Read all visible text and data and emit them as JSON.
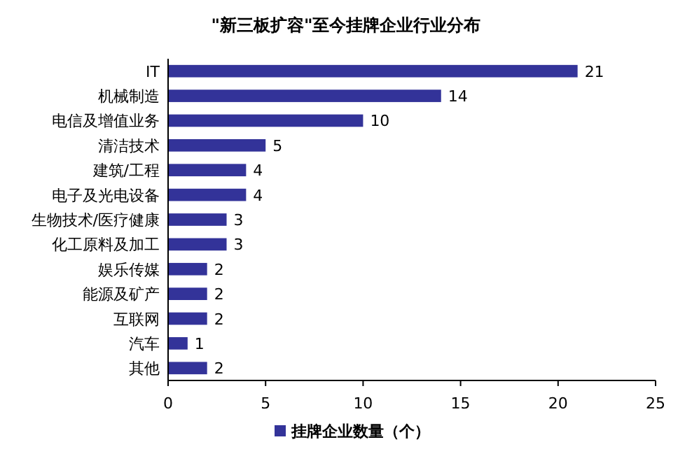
{
  "chart_data": {
    "type": "bar",
    "orientation": "horizontal",
    "title": "\"新三板扩容\"至今挂牌企业行业分布",
    "categories": [
      "IT",
      "机械制造",
      "电信及增值业务",
      "清洁技术",
      "建筑/工程",
      "电子及光电设备",
      "生物技术/医疗健康",
      "化工原料及加工",
      "娱乐传媒",
      "能源及矿产",
      "互联网",
      "汽车",
      "其他"
    ],
    "series": [
      {
        "name": "挂牌企业数量（个）",
        "color": "#333399",
        "values": [
          21,
          14,
          10,
          5,
          4,
          4,
          3,
          3,
          2,
          2,
          2,
          1,
          2
        ]
      }
    ],
    "xlim": [
      0,
      25
    ],
    "xticks": [
      0,
      5,
      10,
      15,
      20,
      25
    ],
    "data_labels": true,
    "legend": "bottom"
  }
}
